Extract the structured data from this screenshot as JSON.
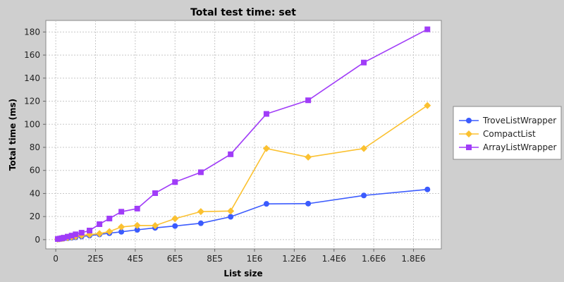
{
  "chart_data": {
    "type": "line",
    "title": "Total test time: set",
    "xlabel": "List size",
    "ylabel": "Total time (ms)",
    "xlim": [
      -50000,
      1940000
    ],
    "ylim": [
      -8,
      190
    ],
    "x_ticks": [
      {
        "value": 0,
        "label": "0"
      },
      {
        "value": 200000,
        "label": "2E5"
      },
      {
        "value": 400000,
        "label": "4E5"
      },
      {
        "value": 600000,
        "label": "6E5"
      },
      {
        "value": 800000,
        "label": "8E5"
      },
      {
        "value": 1000000,
        "label": "1E6"
      },
      {
        "value": 1200000,
        "label": "1.2E6"
      },
      {
        "value": 1400000,
        "label": "1.4E6"
      },
      {
        "value": 1600000,
        "label": "1.6E6"
      },
      {
        "value": 1800000,
        "label": "1.8E6"
      }
    ],
    "y_ticks": [
      {
        "value": 0,
        "label": "0"
      },
      {
        "value": 20,
        "label": "20"
      },
      {
        "value": 40,
        "label": "40"
      },
      {
        "value": 60,
        "label": "60"
      },
      {
        "value": 80,
        "label": "80"
      },
      {
        "value": 100,
        "label": "100"
      },
      {
        "value": 120,
        "label": "120"
      },
      {
        "value": 140,
        "label": "140"
      },
      {
        "value": 160,
        "label": "160"
      },
      {
        "value": 180,
        "label": "180"
      }
    ],
    "grid": true,
    "legend_position": "right",
    "x": [
      10000,
      20000,
      30000,
      40000,
      60000,
      80000,
      100000,
      130000,
      170000,
      220000,
      270000,
      330000,
      410000,
      500000,
      600000,
      730000,
      880000,
      1060000,
      1270000,
      1550000,
      1870000
    ],
    "series": [
      {
        "name": "TroveListWrapper",
        "color": "#3b5bfe",
        "marker": "circle",
        "values": [
          0.3,
          0.5,
          0.7,
          0.9,
          1.2,
          1.6,
          2.0,
          2.7,
          3.5,
          4.5,
          5.6,
          6.8,
          8.5,
          10.2,
          11.8,
          14.2,
          19.8,
          31.0,
          31.2,
          38.3,
          43.5
        ]
      },
      {
        "name": "CompactList",
        "color": "#fbc130",
        "marker": "diamond",
        "values": [
          0.4,
          0.7,
          0.9,
          1.2,
          1.7,
          2.2,
          2.8,
          3.6,
          4.4,
          5.2,
          7.0,
          11.0,
          12.3,
          12.2,
          18.2,
          24.3,
          24.8,
          79.0,
          71.5,
          79.0,
          116.3
        ]
      },
      {
        "name": "ArrayListWrapper",
        "color": "#a03cf8",
        "marker": "square",
        "values": [
          0.5,
          0.9,
          1.2,
          1.7,
          2.6,
          3.5,
          4.6,
          6.0,
          7.9,
          13.4,
          18.3,
          24.2,
          26.9,
          40.3,
          49.9,
          58.4,
          74.0,
          109.0,
          120.8,
          153.5,
          182.3
        ]
      }
    ]
  }
}
